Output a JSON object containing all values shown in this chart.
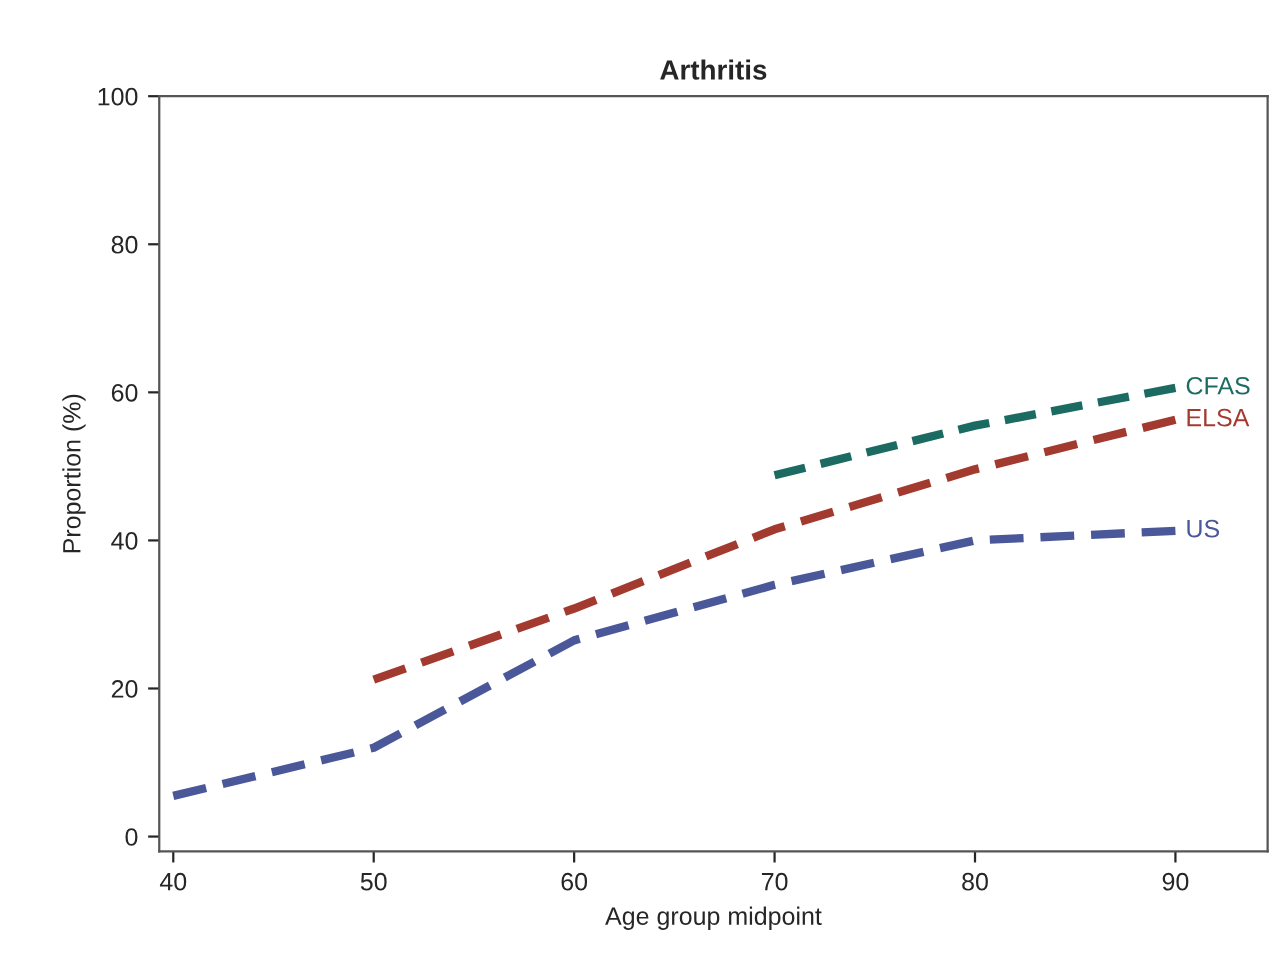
{
  "chart_data": {
    "type": "line",
    "title": "Arthritis",
    "xlabel": "Age group midpoint",
    "ylabel": "Proportion (%)",
    "x": [
      40,
      50,
      60,
      70,
      80,
      90
    ],
    "series": [
      {
        "name": "CFAS",
        "color": "#1b6b63",
        "values": [
          null,
          null,
          null,
          48.8,
          55.5,
          60.6
        ]
      },
      {
        "name": "ELSA",
        "color": "#a33a2f",
        "values": [
          null,
          21.2,
          30.8,
          41.5,
          49.6,
          56.3
        ]
      },
      {
        "name": "US",
        "color": "#4a5899",
        "values": [
          5.5,
          12,
          26.5,
          34,
          40,
          41.3
        ]
      }
    ],
    "xlim": [
      39.3,
      94.6
    ],
    "xticks": [
      40,
      50,
      60,
      70,
      80,
      90
    ],
    "ylim": [
      -2,
      100
    ],
    "yticks": [
      0,
      20,
      40,
      60,
      80,
      100
    ],
    "line_style": "dashed",
    "grid": false,
    "legend": false
  }
}
